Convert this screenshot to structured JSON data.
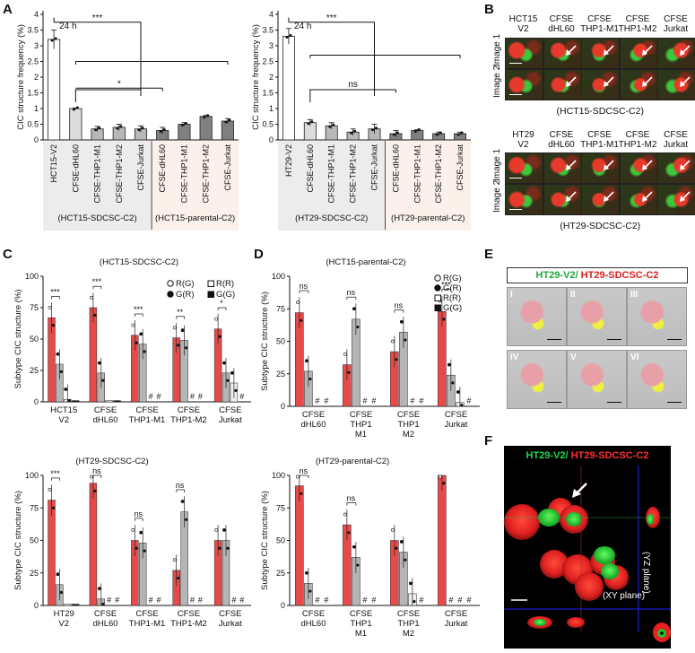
{
  "panels": {
    "A": "A",
    "B": "B",
    "C": "C",
    "D": "D",
    "E": "E",
    "F": "F"
  },
  "chart_data": [
    {
      "id": "A1",
      "type": "bar",
      "ylabel": "CIC structure frequency (%)",
      "ylim": [
        0,
        4
      ],
      "yticks": [
        "0",
        "0.5",
        "1",
        "1.5",
        "2",
        "2.5",
        "3",
        "3.5",
        "4"
      ],
      "categories": [
        "HCT15-V2",
        "CFSE-dHL60",
        "CFSE-THP1-M1",
        "CFSE-THP1-M2",
        "CFSE-Jurkat",
        "CFSE-dHL60",
        "CFSE-THP1-M1",
        "CFSE-THP1-M2",
        "CFSE-Jurkat"
      ],
      "values": [
        3.2,
        1.0,
        0.35,
        0.4,
        0.35,
        0.3,
        0.5,
        0.75,
        0.6
      ],
      "errors": [
        0.3,
        0.02,
        0.08,
        0.1,
        0.1,
        0.1,
        0.05,
        0.03,
        0.08
      ],
      "annotations": [
        "24 h",
        "***",
        "*"
      ],
      "groups": [
        "(HCT15-SDCSC-C2)",
        "(HCT15-parental-C2)"
      ]
    },
    {
      "id": "A2",
      "type": "bar",
      "ylabel": "CIC structure frequency (%)",
      "ylim": [
        0,
        4
      ],
      "yticks": [
        "0",
        "0.5",
        "1",
        "1.5",
        "2",
        "2.5",
        "3",
        "3.5",
        "4"
      ],
      "categories": [
        "HT29-V2",
        "CFSE-dHL60",
        "CFSE-THP1-M1",
        "CFSE-THP1-M2",
        "CFSE-Jurkat",
        "CFSE-dHL60",
        "CFSE-THP1-M1",
        "CFSE-THP1-M2",
        "CFSE-Jurkat"
      ],
      "values": [
        3.3,
        0.55,
        0.45,
        0.25,
        0.35,
        0.2,
        0.3,
        0.2,
        0.2
      ],
      "errors": [
        0.25,
        0.1,
        0.1,
        0.1,
        0.15,
        0.1,
        0.03,
        0.05,
        0.05
      ],
      "annotations": [
        "24 h",
        "***",
        "ns"
      ],
      "groups": [
        "(HT29-SDCSC-C2)",
        "(HT29-parental-C2)"
      ]
    },
    {
      "id": "C1",
      "type": "bar",
      "title": "(HCT15-SDCSC-C2)",
      "ylabel": "Subtype CIC structure (%)",
      "ylim": [
        0,
        100
      ],
      "yticks": [
        "0",
        "25",
        "50",
        "75",
        "100"
      ],
      "categories": [
        "HCT15 V2",
        "CFSE dHL60",
        "CFSE THP1-M1",
        "CFSE THP1-M2",
        "CFSE Jurkat"
      ],
      "series": [
        {
          "name": "R(G)",
          "values": [
            67,
            75,
            53,
            51,
            58
          ]
        },
        {
          "name": "G(R)",
          "values": [
            30,
            23,
            46,
            49,
            23
          ]
        },
        {
          "name": "R(R)",
          "values": [
            2,
            1,
            0,
            0,
            15
          ]
        },
        {
          "name": "G(G)",
          "values": [
            1,
            1,
            0,
            0,
            0
          ]
        }
      ],
      "legend": [
        "R(G)",
        "R(R)",
        "G(R)",
        "G(G)"
      ],
      "annotations": [
        "***",
        "***",
        "***",
        "**",
        "*",
        "ns",
        "ns",
        "**"
      ]
    },
    {
      "id": "C2",
      "type": "bar",
      "title": "(HT29-SDCSC-C2)",
      "ylabel": "Subtype CIC structure (%)",
      "ylim": [
        0,
        100
      ],
      "yticks": [
        "0",
        "25",
        "50",
        "75",
        "100"
      ],
      "categories": [
        "HT29 V2",
        "CFSE dHL60",
        "CFSE THP1-M1",
        "CFSE THP1-M2",
        "CFSE Jurkat"
      ],
      "series": [
        {
          "name": "R(G)",
          "values": [
            81,
            94,
            50,
            27,
            50
          ]
        },
        {
          "name": "G(R)",
          "values": [
            16,
            5,
            48,
            72,
            50
          ]
        },
        {
          "name": "R(R)",
          "values": [
            1,
            0,
            0,
            0,
            0
          ]
        },
        {
          "name": "G(G)",
          "values": [
            1,
            0,
            0,
            0,
            0
          ]
        }
      ],
      "annotations": [
        "***",
        "ns",
        "ns",
        "ns"
      ]
    },
    {
      "id": "D1",
      "type": "bar",
      "title": "(HCT15-parental-C2)",
      "ylabel": "Subtype CIC structure (%)",
      "ylim": [
        0,
        100
      ],
      "yticks": [
        "0",
        "25",
        "50",
        "75",
        "100"
      ],
      "categories": [
        "CFSE dHL60",
        "CFSE THP1 M1",
        "CFSE THP1 M2",
        "CFSE Jurkat"
      ],
      "series": [
        {
          "name": "R(G)",
          "values": [
            72,
            32,
            42,
            73
          ]
        },
        {
          "name": "G(R)",
          "values": [
            27,
            67,
            57,
            24
          ]
        },
        {
          "name": "R(R)",
          "values": [
            0,
            0,
            0,
            3
          ]
        },
        {
          "name": "G(G)",
          "values": [
            0,
            0,
            0,
            0
          ]
        }
      ],
      "legend": [
        "R(G)",
        "G(R)",
        "R(R)",
        "G(G)"
      ],
      "annotations": [
        "ns",
        "ns",
        "ns",
        "***",
        "***"
      ]
    },
    {
      "id": "D2",
      "type": "bar",
      "title": "(HT29-parental-C2)",
      "ylabel": "Subtype CIC structure (%)",
      "ylim": [
        0,
        100
      ],
      "yticks": [
        "0",
        "25",
        "50",
        "75",
        "100"
      ],
      "categories": [
        "CFSE dHL60",
        "CFSE THP1 M1",
        "CFSE THP1 M2",
        "CFSE Jurkat"
      ],
      "series": [
        {
          "name": "R(G)",
          "values": [
            92,
            62,
            50,
            100
          ]
        },
        {
          "name": "G(R)",
          "values": [
            17,
            37,
            41,
            0
          ]
        },
        {
          "name": "R(R)",
          "values": [
            0,
            0,
            9,
            0
          ]
        },
        {
          "name": "G(G)",
          "values": [
            0,
            0,
            0,
            0
          ]
        }
      ],
      "annotations": [
        "ns",
        "ns"
      ]
    }
  ],
  "B": {
    "top_headers": [
      "HCT15\nV2",
      "CFSE\ndHL60",
      "CFSE\nTHP1-M1",
      "CFSE\nTHP1-M2",
      "CFSE\nJurkat"
    ],
    "bottom_headers": [
      "HT29\nV2",
      "CFSE\ndHL60",
      "CFSE\nTHP1-M1",
      "CFSE\nTHP1-M2",
      "CFSE\nJurkat"
    ],
    "rows": [
      "Image 1",
      "Image 2"
    ],
    "caption_top": "(HCT15-SDCSC-C2)",
    "caption_bottom": "(HT29-SDCSC-C2)"
  },
  "E": {
    "title_green": "HT29-V2/",
    "title_red": " HT29-SDCSC-C2",
    "frames": [
      "I",
      "II",
      "III",
      "IV",
      "V",
      "VI"
    ]
  },
  "F": {
    "title_green": "HT29-V2/",
    "title_red": " HT29-SDCSC-C2",
    "xy": "(XY plane)",
    "yz": "(YZ plane)"
  },
  "hash": "#",
  "colors": {
    "red": "#e84a4a",
    "gray": "#b5b5b5",
    "light": "#eeeeee",
    "dark": "#111111",
    "green": "#1fc23b"
  }
}
